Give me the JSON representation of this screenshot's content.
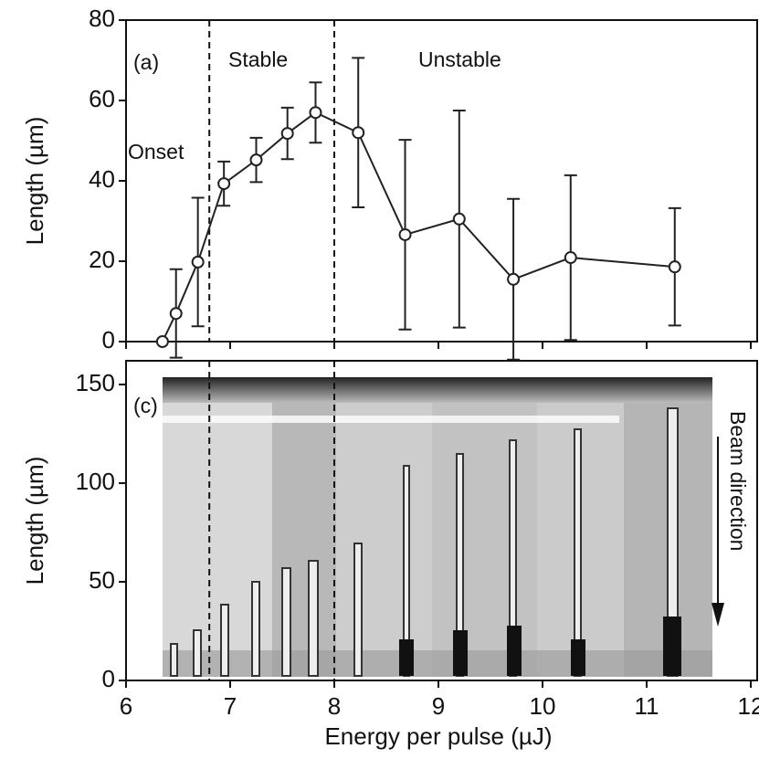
{
  "chart_data": [
    {
      "type": "line",
      "label": "(a)",
      "annotations": [
        "Onset",
        "Stable",
        "Unstable"
      ],
      "y_label": "Length (µm)",
      "xlim": [
        6,
        12
      ],
      "ylim": [
        0,
        80
      ],
      "yticks": [
        0,
        20,
        40,
        60,
        80
      ],
      "dividers": [
        6.8,
        8
      ],
      "series": [
        {
          "color": "#222222",
          "x": [
            6.35,
            6.48,
            6.69,
            6.94,
            7.25,
            7.55,
            7.82,
            8.23,
            8.68,
            9.2,
            9.72,
            10.27,
            11.27
          ],
          "values": [
            0,
            7,
            19.8,
            39.3,
            45.2,
            51.8,
            57,
            52,
            26.6,
            30.5,
            15.5,
            20.9,
            18.6
          ],
          "errors": [
            0,
            11,
            16,
            5.5,
            5.5,
            6.4,
            7.5,
            18.6,
            23.6,
            27,
            20,
            20.5,
            14.6
          ]
        }
      ]
    },
    {
      "type": "image",
      "label": "(c)",
      "annotation": "Beam direction",
      "y_label": "Length (µm)",
      "x_label": "Energy per pulse (µJ)",
      "xlim": [
        6,
        12
      ],
      "xticks": [
        6,
        7,
        8,
        9,
        10,
        11,
        12
      ],
      "ylim": [
        0,
        162
      ],
      "yticks": [
        0,
        50,
        100,
        150
      ]
    }
  ]
}
